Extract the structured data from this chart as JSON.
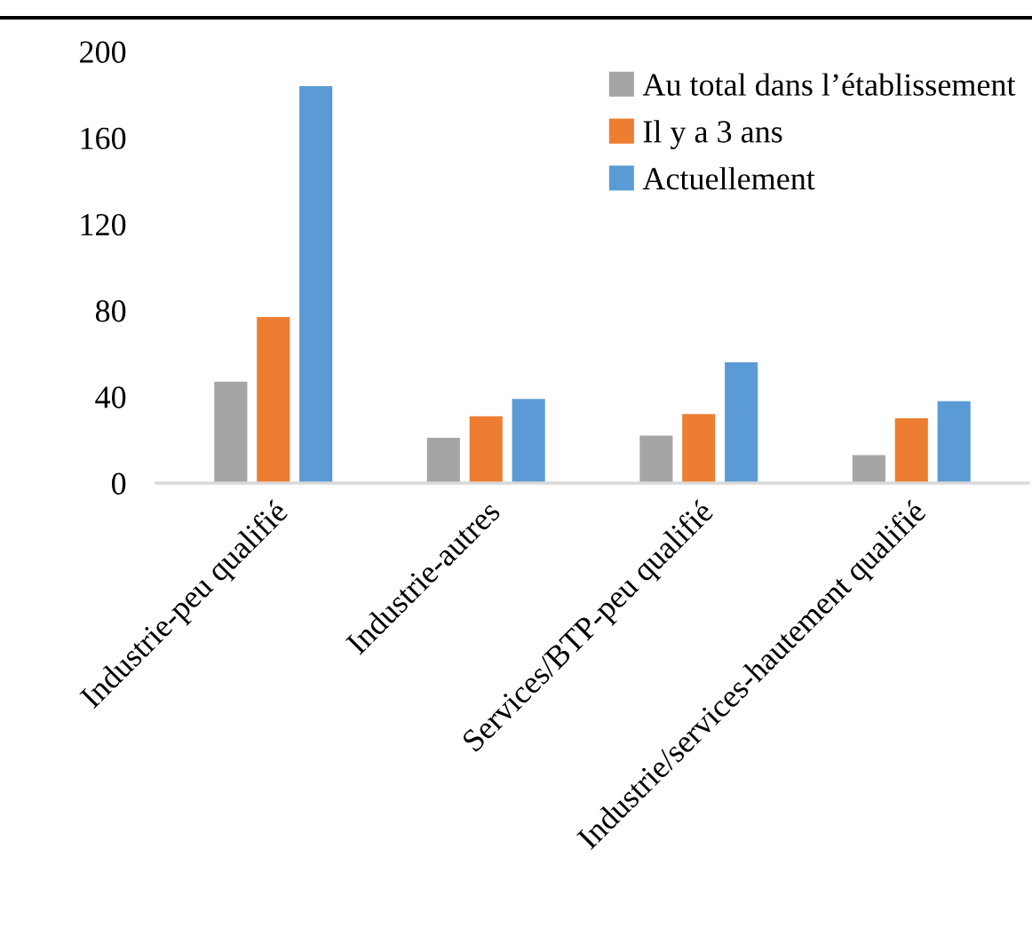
{
  "chart_data": {
    "type": "bar",
    "categories": [
      "Industrie-peu qualifié",
      "Industrie-autres",
      "Services/BTP-peu qualifié",
      "Industrie/services-hautement qualifié"
    ],
    "series": [
      {
        "name": "Au total dans l’établissement",
        "color": "#a5a5a5",
        "values": [
          47,
          21,
          22,
          13
        ]
      },
      {
        "name": "Il y a 3 ans",
        "color": "#ed7d31",
        "values": [
          77,
          31,
          32,
          30
        ]
      },
      {
        "name": "Actuellement",
        "color": "#5b9bd5",
        "values": [
          184,
          39,
          56,
          38
        ]
      }
    ],
    "ylim": [
      0,
      200
    ],
    "yticks": [
      0,
      40,
      80,
      120,
      160,
      200
    ],
    "grid": false,
    "legend": "top right"
  }
}
